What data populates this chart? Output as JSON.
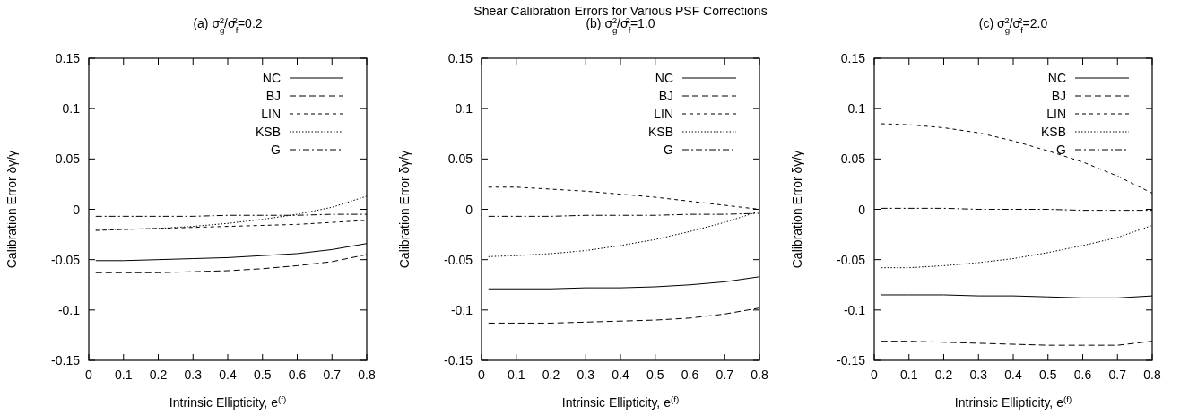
{
  "chart_data": [
    {
      "type": "line",
      "title": "(a) σ$_{g}$$^{2}$/σ$_{f}$$^{2}$=0.2",
      "xlabel": "Intrinsic Ellipticity, e$^{(f)}$",
      "ylabel": "Calibration Error δγ/γ",
      "x": [
        0.02,
        0.1,
        0.2,
        0.3,
        0.4,
        0.5,
        0.6,
        0.7,
        0.8
      ],
      "xlim": [
        0,
        0.8
      ],
      "xticks": [
        0,
        0.1,
        0.2,
        0.3,
        0.4,
        0.5,
        0.6,
        0.7,
        0.8
      ],
      "ylim": [
        -0.15,
        0.15
      ],
      "yticks": [
        -0.15,
        -0.1,
        -0.05,
        0,
        0.05,
        0.1,
        0.15
      ],
      "legend": "top right",
      "grid": false,
      "series": [
        {
          "name": "NC",
          "color": "#000000",
          "line_style": "solid",
          "values": [
            -0.051,
            -0.051,
            -0.05,
            -0.049,
            -0.048,
            -0.046,
            -0.044,
            -0.04,
            -0.034
          ]
        },
        {
          "name": "BJ",
          "color": "#000000",
          "line_style": "dashed",
          "values": [
            -0.063,
            -0.063,
            -0.063,
            -0.062,
            -0.061,
            -0.059,
            -0.056,
            -0.052,
            -0.045
          ]
        },
        {
          "name": "LIN",
          "color": "#000000",
          "line_style": "dashed",
          "values": [
            -0.021,
            -0.02,
            -0.019,
            -0.018,
            -0.017,
            -0.016,
            -0.015,
            -0.013,
            -0.011
          ]
        },
        {
          "name": "KSB",
          "color": "#000000",
          "line_style": "dotted",
          "values": [
            -0.02,
            -0.02,
            -0.019,
            -0.017,
            -0.014,
            -0.01,
            -0.005,
            0.002,
            0.013
          ]
        },
        {
          "name": "G",
          "color": "#000000",
          "line_style": "dashed",
          "values": [
            -0.007,
            -0.007,
            -0.007,
            -0.007,
            -0.006,
            -0.006,
            -0.006,
            -0.005,
            -0.005
          ]
        }
      ]
    },
    {
      "type": "line",
      "title": "(b) σ$_{g}$$^{2}$/σ$_{f}$$^{2}$=1.0",
      "annotations": [
        "Shear Calibration Errors for Various PSF Corrections"
      ],
      "xlabel": "Intrinsic Ellipticity, e$^{(f)}$",
      "ylabel": "Calibration Error δγ/γ",
      "x": [
        0.02,
        0.1,
        0.2,
        0.3,
        0.4,
        0.5,
        0.6,
        0.7,
        0.8
      ],
      "xlim": [
        0,
        0.8
      ],
      "xticks": [
        0,
        0.1,
        0.2,
        0.3,
        0.4,
        0.5,
        0.6,
        0.7,
        0.8
      ],
      "ylim": [
        -0.15,
        0.15
      ],
      "yticks": [
        -0.15,
        -0.1,
        -0.05,
        0,
        0.05,
        0.1,
        0.15
      ],
      "legend": "top right",
      "grid": false,
      "series": [
        {
          "name": "NC",
          "color": "#000000",
          "line_style": "solid",
          "values": [
            -0.079,
            -0.079,
            -0.079,
            -0.078,
            -0.078,
            -0.077,
            -0.075,
            -0.072,
            -0.067
          ]
        },
        {
          "name": "BJ",
          "color": "#000000",
          "line_style": "dashed",
          "values": [
            -0.113,
            -0.113,
            -0.113,
            -0.112,
            -0.111,
            -0.11,
            -0.108,
            -0.104,
            -0.098
          ]
        },
        {
          "name": "LIN",
          "color": "#000000",
          "line_style": "dashed",
          "values": [
            0.022,
            0.022,
            0.02,
            0.018,
            0.015,
            0.012,
            0.008,
            0.004,
            0.0
          ]
        },
        {
          "name": "KSB",
          "color": "#000000",
          "line_style": "dotted",
          "values": [
            -0.047,
            -0.046,
            -0.044,
            -0.041,
            -0.036,
            -0.03,
            -0.022,
            -0.013,
            -0.002
          ]
        },
        {
          "name": "G",
          "color": "#000000",
          "line_style": "dashed",
          "values": [
            -0.007,
            -0.007,
            -0.007,
            -0.006,
            -0.006,
            -0.006,
            -0.005,
            -0.005,
            -0.004
          ]
        }
      ]
    },
    {
      "type": "line",
      "title": "(c) σ$_{g}$$^{2}$/σ$_{f}$$^{2}$=2.0",
      "xlabel": "Intrinsic Ellipticity, e$^{(f)}$",
      "ylabel": "Calibration Error δγ/γ",
      "x": [
        0.02,
        0.1,
        0.2,
        0.3,
        0.4,
        0.5,
        0.6,
        0.7,
        0.8
      ],
      "xlim": [
        0,
        0.8
      ],
      "xticks": [
        0,
        0.1,
        0.2,
        0.3,
        0.4,
        0.5,
        0.6,
        0.7,
        0.8
      ],
      "ylim": [
        -0.15,
        0.15
      ],
      "yticks": [
        -0.15,
        -0.1,
        -0.05,
        0,
        0.05,
        0.1,
        0.15
      ],
      "legend": "top right",
      "grid": false,
      "series": [
        {
          "name": "NC",
          "color": "#000000",
          "line_style": "solid",
          "values": [
            -0.085,
            -0.085,
            -0.085,
            -0.086,
            -0.086,
            -0.087,
            -0.088,
            -0.088,
            -0.086
          ]
        },
        {
          "name": "BJ",
          "color": "#000000",
          "line_style": "dashed",
          "values": [
            -0.131,
            -0.131,
            -0.132,
            -0.133,
            -0.134,
            -0.135,
            -0.135,
            -0.135,
            -0.131
          ]
        },
        {
          "name": "LIN",
          "color": "#000000",
          "line_style": "dashed",
          "values": [
            0.085,
            0.084,
            0.081,
            0.076,
            0.068,
            0.058,
            0.047,
            0.033,
            0.016
          ]
        },
        {
          "name": "KSB",
          "color": "#000000",
          "line_style": "dotted",
          "values": [
            -0.058,
            -0.058,
            -0.056,
            -0.053,
            -0.049,
            -0.043,
            -0.036,
            -0.028,
            -0.016
          ]
        },
        {
          "name": "G",
          "color": "#000000",
          "line_style": "dashed",
          "values": [
            0.001,
            0.001,
            0.001,
            0.0,
            0.0,
            0.0,
            -0.001,
            -0.001,
            -0.001
          ]
        }
      ]
    }
  ]
}
